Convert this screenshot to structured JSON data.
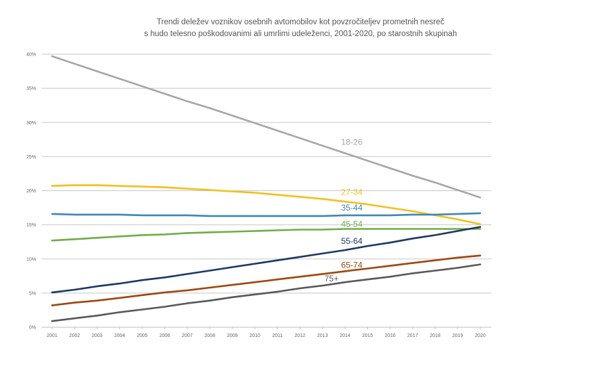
{
  "chart_data": {
    "type": "line",
    "title_lines": [
      "Trendi deležev voznikov osebnih avtomobilov kot povzročiteljev prometnih nesreč",
      "s hudo telesno poškodovanimi ali umrlimi udeleženci, 2001-2020, po starostnih skupinah"
    ],
    "x": [
      2001,
      2002,
      2003,
      2004,
      2005,
      2006,
      2007,
      2008,
      2009,
      2010,
      2011,
      2012,
      2013,
      2014,
      2015,
      2016,
      2017,
      2018,
      2019,
      2020
    ],
    "x_tick_labels": [
      "2001",
      "2002",
      "2003",
      "2004",
      "2005",
      "2006",
      "2007",
      "2008",
      "2009",
      "2010",
      "2011",
      "2012",
      "2013",
      "2014",
      "2015",
      "2016",
      "2017",
      "2018",
      "2019",
      "2020"
    ],
    "ylim": [
      0,
      40
    ],
    "y_ticks": [
      0,
      5,
      10,
      15,
      20,
      25,
      30,
      35,
      40
    ],
    "y_tick_labels": [
      "0%",
      "5%",
      "10%",
      "15%",
      "20%",
      "25%",
      "30%",
      "35%",
      "40%"
    ],
    "grid": true,
    "series": [
      {
        "name": "18-26",
        "color": "#a6a6a6",
        "label_x": 2014.3,
        "label_y": 26.7,
        "values": [
          39.7,
          38.6,
          37.5,
          36.4,
          35.3,
          34.2,
          33.1,
          32.1,
          31.0,
          29.9,
          28.8,
          27.7,
          26.6,
          25.5,
          24.4,
          23.3,
          22.2,
          21.2,
          20.1,
          19.0
        ]
      },
      {
        "name": "27-34",
        "color": "#f2c01e",
        "label_x": 2014.3,
        "label_y": 19.4,
        "values": [
          20.7,
          20.8,
          20.8,
          20.7,
          20.6,
          20.5,
          20.3,
          20.1,
          19.9,
          19.7,
          19.4,
          19.1,
          18.8,
          18.4,
          18.0,
          17.5,
          17.0,
          16.4,
          15.8,
          15.1
        ]
      },
      {
        "name": "35-44",
        "color": "#3f87b9",
        "label_x": 2014.3,
        "label_y": 17.1,
        "values": [
          16.6,
          16.5,
          16.5,
          16.5,
          16.4,
          16.4,
          16.4,
          16.3,
          16.3,
          16.3,
          16.3,
          16.3,
          16.3,
          16.4,
          16.4,
          16.4,
          16.5,
          16.5,
          16.6,
          16.7
        ]
      },
      {
        "name": "45-54",
        "color": "#70ad47",
        "label_x": 2014.3,
        "label_y": 14.7,
        "values": [
          12.7,
          12.9,
          13.1,
          13.3,
          13.5,
          13.6,
          13.8,
          13.9,
          14.0,
          14.1,
          14.2,
          14.3,
          14.3,
          14.4,
          14.4,
          14.4,
          14.4,
          14.4,
          14.4,
          14.4
        ]
      },
      {
        "name": "55-64",
        "color": "#1f3864",
        "label_x": 2014.3,
        "label_y": 12.2,
        "values": [
          5.1,
          5.5,
          6.0,
          6.4,
          6.9,
          7.3,
          7.8,
          8.3,
          8.8,
          9.3,
          9.8,
          10.3,
          10.8,
          11.3,
          11.9,
          12.4,
          13.0,
          13.5,
          14.1,
          14.7
        ]
      },
      {
        "name": "65-74",
        "color": "#9e480e",
        "label_x": 2014.3,
        "label_y": 8.7,
        "values": [
          3.2,
          3.6,
          3.9,
          4.3,
          4.7,
          5.1,
          5.4,
          5.8,
          6.2,
          6.6,
          7.0,
          7.4,
          7.8,
          8.2,
          8.6,
          9.0,
          9.4,
          9.8,
          10.2,
          10.5
        ]
      },
      {
        "name": "75+",
        "color": "#595959",
        "label_x": 2013.4,
        "label_y": 6.7,
        "values": [
          0.9,
          1.3,
          1.7,
          2.2,
          2.6,
          3.0,
          3.5,
          3.9,
          4.4,
          4.8,
          5.2,
          5.7,
          6.1,
          6.6,
          7.0,
          7.4,
          7.9,
          8.3,
          8.7,
          9.2
        ]
      }
    ]
  }
}
